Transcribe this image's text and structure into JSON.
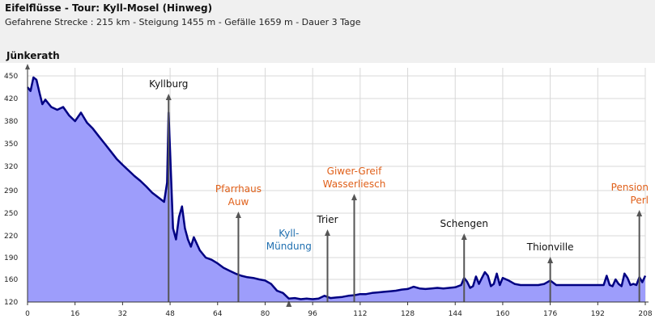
{
  "header": {
    "title": "Eifelflüsse - Tour: Kyll-Mosel (Hinweg)",
    "subtitle": "Gefahrene Strecke : 215 km  -  Steigung  1455 m  -  Gefälle  1659 m  -  Dauer 3 Tage"
  },
  "colors": {
    "fill": "#9d9dfb",
    "line": "#000082",
    "marker": "#555555",
    "label_black": "#111111",
    "label_orange": "#e0601a",
    "label_blue": "#1f6fb0"
  },
  "chart_data": {
    "type": "area",
    "start_label": "Jünkerath",
    "xlim": [
      0,
      208
    ],
    "ylim": [
      120,
      460
    ],
    "x_ticks": [
      0,
      16,
      32,
      48,
      64,
      80,
      96,
      112,
      128,
      144,
      160,
      176,
      192,
      208
    ],
    "y_ticks": [
      120,
      160,
      190,
      220,
      250,
      290,
      320,
      350,
      380,
      420,
      450
    ],
    "profile": {
      "x": [
        0,
        1,
        2,
        3,
        4,
        5,
        6,
        8,
        10,
        12,
        14,
        16,
        18,
        20,
        22,
        24,
        26,
        28,
        30,
        32,
        34,
        36,
        38,
        40,
        42,
        44,
        46,
        47,
        47.5,
        48,
        49,
        50,
        51,
        52,
        53,
        54,
        55,
        56,
        58,
        60,
        62,
        64,
        66,
        68,
        70,
        72,
        74,
        76,
        78,
        80,
        82,
        84,
        86,
        88,
        90,
        92,
        94,
        96,
        98,
        100,
        102,
        104,
        106,
        108,
        110,
        112,
        114,
        116,
        118,
        120,
        122,
        124,
        126,
        128,
        130,
        132,
        134,
        136,
        138,
        140,
        142,
        144,
        146,
        147,
        148,
        149,
        150,
        151,
        152,
        153,
        154,
        155,
        156,
        157,
        158,
        159,
        160,
        162,
        164,
        166,
        168,
        170,
        172,
        174,
        176,
        178,
        180,
        182,
        184,
        186,
        188,
        190,
        192,
        194,
        195,
        196,
        197,
        198,
        199,
        200,
        201,
        202,
        203,
        204,
        205,
        206,
        207,
        208
      ],
      "y": [
        435,
        430,
        448,
        445,
        428,
        410,
        418,
        405,
        400,
        405,
        390,
        380,
        395,
        378,
        370,
        360,
        350,
        340,
        330,
        322,
        315,
        308,
        302,
        295,
        286,
        278,
        270,
        300,
        395,
        340,
        230,
        215,
        245,
        262,
        230,
        215,
        205,
        218,
        200,
        190,
        187,
        182,
        176,
        172,
        168,
        165,
        163,
        162,
        160,
        158,
        152,
        140,
        136,
        126,
        127,
        125,
        126,
        125,
        126,
        131,
        127,
        128,
        129,
        131,
        132,
        134,
        134,
        136,
        137,
        138,
        139,
        140,
        142,
        143,
        147,
        144,
        143,
        144,
        145,
        144,
        145,
        146,
        150,
        162,
        156,
        145,
        148,
        164,
        152,
        162,
        170,
        165,
        148,
        152,
        168,
        150,
        162,
        158,
        152,
        150,
        150,
        150,
        150,
        152,
        158,
        150,
        150,
        150,
        150,
        150,
        150,
        150,
        150,
        150,
        165,
        150,
        148,
        160,
        152,
        148,
        168,
        162,
        150,
        152,
        150,
        163,
        155,
        165
      ]
    },
    "places": [
      {
        "name": [
          "Kyllburg"
        ],
        "km": 47.5,
        "color": "black"
      },
      {
        "name": [
          "Pfarrhaus",
          "Auw"
        ],
        "km": 71,
        "color": "orange"
      },
      {
        "name": [
          "Kyll-",
          "Mündung"
        ],
        "km": 88,
        "color": "blue"
      },
      {
        "name": [
          "Trier"
        ],
        "km": 101,
        "color": "black"
      },
      {
        "name": [
          "Giwer-Greif",
          "Wasserliesch"
        ],
        "km": 110,
        "color": "orange"
      },
      {
        "name": [
          "Schengen"
        ],
        "km": 147,
        "color": "black"
      },
      {
        "name": [
          "Thionville"
        ],
        "km": 176,
        "color": "black"
      },
      {
        "name": [
          "Pension",
          "Perl"
        ],
        "km": 206,
        "color": "orange"
      }
    ]
  }
}
